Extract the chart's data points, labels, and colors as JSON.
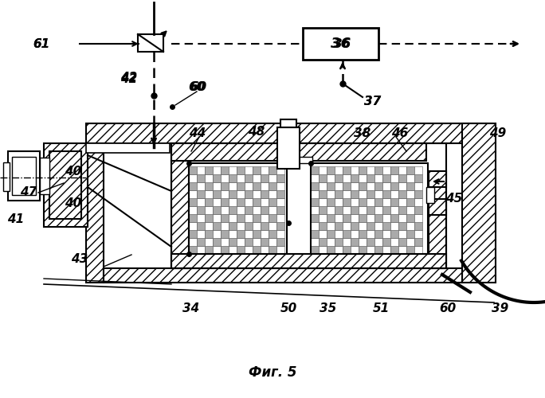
{
  "title": "Фиг. 5",
  "bg_color": "#ffffff",
  "line_color": "#000000"
}
